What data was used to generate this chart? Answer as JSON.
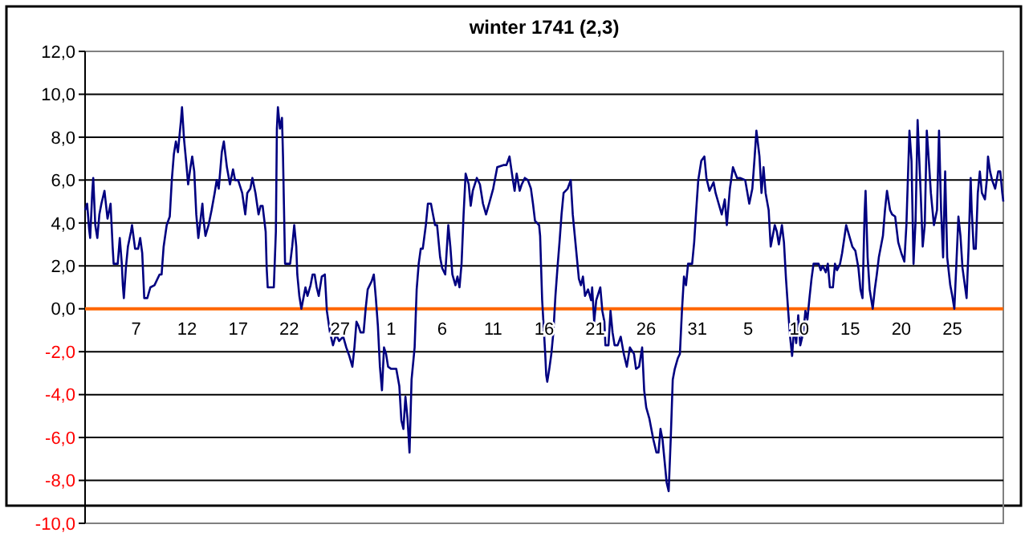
{
  "chart_data": {
    "type": "line",
    "title": "winter 1741 (2,3)",
    "x": [
      "1740-12-02T00:00",
      "1740-12-02T04:48",
      "1740-12-02T09:36",
      "1740-12-02T12:00",
      "1740-12-02T16:48",
      "1740-12-02T19:12",
      "1740-12-03T00:00",
      "1740-12-03T04:48",
      "1740-12-03T09:36",
      "1740-12-03T14:24",
      "1740-12-03T21:36",
      "1740-12-04T04:48",
      "1740-12-04T12:00",
      "1740-12-04T16:48",
      "1740-12-04T19:12",
      "1740-12-05T04:48",
      "1740-12-05T09:36",
      "1740-12-05T14:24",
      "1740-12-05T16:48",
      "1740-12-05T19:12",
      "1740-12-06T00:00",
      "1740-12-06T04:48",
      "1740-12-06T12:00",
      "1740-12-06T14:24",
      "1740-12-06T21:36",
      "1740-12-07T04:48",
      "1740-12-07T09:36",
      "1740-12-07T14:24",
      "1740-12-07T19:12",
      "1740-12-08T02:24",
      "1740-12-08T09:36",
      "1740-12-08T19:12",
      "1740-12-09T07:12",
      "1740-12-09T12:00",
      "1740-12-09T16:48",
      "1740-12-10T00:00",
      "1740-12-10T07:12",
      "1740-12-10T12:00",
      "1740-12-10T16:48",
      "1740-12-10T21:36",
      "1740-12-11T02:24",
      "1740-12-11T09:36",
      "1740-12-11T12:00",
      "1740-12-11T16:48",
      "1740-12-11T21:36",
      "1740-12-12T02:24",
      "1740-12-12T07:12",
      "1740-12-12T12:00",
      "1740-12-12T16:48",
      "1740-12-12T21:36",
      "1740-12-13T02:24",
      "1740-12-13T12:00",
      "1740-12-13T14:24",
      "1740-12-13T19:12",
      "1740-12-14T02:24",
      "1740-12-14T09:36",
      "1740-12-14T16:48",
      "1740-12-14T21:36",
      "1740-12-15T02:24",
      "1740-12-15T09:36",
      "1740-12-15T14:24",
      "1740-12-15T21:36",
      "1740-12-16T04:48",
      "1740-12-16T12:00",
      "1740-12-16T16:48",
      "1740-12-17T00:00",
      "1740-12-17T09:36",
      "1740-12-17T16:48",
      "1740-12-17T21:36",
      "1740-12-18T04:48",
      "1740-12-18T09:36",
      "1740-12-18T16:48",
      "1740-12-19T00:00",
      "1740-12-19T04:48",
      "1740-12-19T09:36",
      "1740-12-19T16:48",
      "1740-12-19T19:12",
      "1740-12-19T21:36",
      "1740-12-20T12:00",
      "1740-12-20T16:48",
      "1740-12-20T19:12",
      "1740-12-20T21:36",
      "1740-12-21T02:24",
      "1740-12-21T07:12",
      "1740-12-21T09:36",
      "1740-12-21T14:24",
      "1740-12-22T02:24",
      "1740-12-22T07:12",
      "1740-12-22T12:00",
      "1740-12-22T16:48",
      "1740-12-22T19:12",
      "1740-12-23T00:00",
      "1740-12-23T04:48",
      "1740-12-23T09:36",
      "1740-12-23T14:24",
      "1740-12-23T19:12",
      "1740-12-24T02:24",
      "1740-12-24T07:12",
      "1740-12-24T12:00",
      "1740-12-24T16:48",
      "1740-12-24T21:36",
      "1740-12-25T04:48",
      "1740-12-25T12:00",
      "1740-12-25T16:48",
      "1740-12-26T00:00",
      "1740-12-26T07:12",
      "1740-12-26T14:24",
      "1740-12-26T21:36",
      "1740-12-27T07:12",
      "1740-12-27T14:24",
      "1740-12-27T21:36",
      "1740-12-28T04:48",
      "1740-12-28T09:36",
      "1740-12-28T14:24",
      "1740-12-28T19:12",
      "1740-12-29T00:00",
      "1740-12-29T07:12",
      "1740-12-29T12:00",
      "1740-12-29T16:48",
      "1740-12-30T02:24",
      "1740-12-30T07:12",
      "1740-12-30T12:00",
      "1740-12-30T16:48",
      "1740-12-30T21:36",
      "1740-12-31T02:24",
      "1740-12-31T07:12",
      "1740-12-31T12:00",
      "1740-12-31T16:48",
      "1741-01-01T00:00",
      "1741-01-01T12:00",
      "1741-01-01T19:12",
      "1741-01-02T00:00",
      "1741-01-02T04:48",
      "1741-01-02T09:36",
      "1741-01-02T14:24",
      "1741-01-02T19:12",
      "1741-01-03T00:00",
      "1741-01-03T07:12",
      "1741-01-03T12:00",
      "1741-01-03T16:48",
      "1741-01-03T21:36",
      "1741-01-04T02:24",
      "1741-01-04T09:36",
      "1741-01-04T14:24",
      "1741-01-04T21:36",
      "1741-01-05T02:24",
      "1741-01-05T07:12",
      "1741-01-05T12:00",
      "1741-01-05T19:12",
      "1741-01-06T00:00",
      "1741-01-06T07:12",
      "1741-01-06T14:24",
      "1741-01-06T19:12",
      "1741-01-07T00:00",
      "1741-01-07T07:12",
      "1741-01-07T12:00",
      "1741-01-07T16:48",
      "1741-01-07T21:36",
      "1741-01-08T02:24",
      "1741-01-08T07:12",
      "1741-01-08T14:24",
      "1741-01-08T19:12",
      "1741-01-09T00:00",
      "1741-01-09T09:36",
      "1741-01-09T16:48",
      "1741-01-10T00:00",
      "1741-01-10T07:12",
      "1741-01-10T14:24",
      "1741-01-11T00:00",
      "1741-01-11T09:36",
      "1741-01-12T00:00",
      "1741-01-12T07:12",
      "1741-01-12T14:24",
      "1741-01-12T21:36",
      "1741-01-13T02:24",
      "1741-01-13T07:12",
      "1741-01-13T14:24",
      "1741-01-13T19:12",
      "1741-01-14T02:24",
      "1741-01-14T09:36",
      "1741-01-14T16:48",
      "1741-01-14T21:36",
      "1741-01-15T02:24",
      "1741-01-15T12:00",
      "1741-01-15T14:24",
      "1741-01-15T19:12",
      "1741-01-16T02:24",
      "1741-01-16T04:48",
      "1741-01-16T07:12",
      "1741-01-16T12:00",
      "1741-01-16T16:48",
      "1741-01-16T21:36",
      "1741-01-17T02:24",
      "1741-01-17T07:12",
      "1741-01-17T12:00",
      "1741-01-17T16:48",
      "1741-01-17T21:36",
      "1741-01-18T07:12",
      "1741-01-18T14:24",
      "1741-01-18T19:12",
      "1741-01-19T00:00",
      "1741-01-19T04:48",
      "1741-01-19T09:36",
      "1741-01-19T14:24",
      "1741-01-19T19:12",
      "1741-01-20T00:00",
      "1741-01-20T07:12",
      "1741-01-20T14:24",
      "1741-01-20T16:48",
      "1741-01-20T21:36",
      "1741-01-21T02:24",
      "1741-01-21T12:00",
      "1741-01-21T16:48",
      "1741-01-21T21:36",
      "1741-01-22T00:00",
      "1741-01-22T07:12",
      "1741-01-22T12:00",
      "1741-01-22T16:48",
      "1741-01-22T21:36",
      "1741-01-23T04:48",
      "1741-01-23T12:00",
      "1741-01-23T19:12",
      "1741-01-24T02:24",
      "1741-01-24T09:36",
      "1741-01-24T19:12",
      "1741-01-25T00:00",
      "1741-01-25T07:12",
      "1741-01-25T14:24",
      "1741-01-25T19:12",
      "1741-01-26T00:00",
      "1741-01-26T07:12",
      "1741-01-26T16:48",
      "1741-01-27T00:00",
      "1741-01-27T04:48",
      "1741-01-27T09:36",
      "1741-01-27T14:24",
      "1741-01-27T19:12",
      "1741-01-28T00:00",
      "1741-01-28T04:48",
      "1741-01-28T09:36",
      "1741-01-28T14:24",
      "1741-01-28T19:12",
      "1741-01-29T02:24",
      "1741-01-29T07:12",
      "1741-01-29T12:00",
      "1741-01-29T16:48",
      "1741-01-29T21:36",
      "1741-01-30T02:24",
      "1741-01-30T12:00",
      "1741-01-30T16:48",
      "1741-01-30T21:36",
      "1741-01-31T02:24",
      "1741-01-31T09:36",
      "1741-01-31T16:48",
      "1741-01-31T21:36",
      "1741-02-01T04:48",
      "1741-02-01T14:24",
      "1741-02-01T19:12",
      "1741-02-02T02:24",
      "1741-02-02T09:36",
      "1741-02-02T16:48",
      "1741-02-02T21:36",
      "1741-02-03T04:48",
      "1741-02-03T12:00",
      "1741-02-03T21:36",
      "1741-02-04T04:48",
      "1741-02-04T16:48",
      "1741-02-05T02:24",
      "1741-02-05T09:36",
      "1741-02-05T14:24",
      "1741-02-05T19:12",
      "1741-02-06T02:24",
      "1741-02-06T07:12",
      "1741-02-06T12:00",
      "1741-02-06T16:48",
      "1741-02-07T00:00",
      "1741-02-07T04:48",
      "1741-02-07T09:36",
      "1741-02-07T14:24",
      "1741-02-07T19:12",
      "1741-02-08T00:00",
      "1741-02-08T07:12",
      "1741-02-08T12:00",
      "1741-02-08T16:48",
      "1741-02-08T21:36",
      "1741-02-09T02:24",
      "1741-02-09T07:12",
      "1741-02-09T12:00",
      "1741-02-09T16:48",
      "1741-02-09T21:36",
      "1741-02-10T02:24",
      "1741-02-10T09:36",
      "1741-02-10T14:24",
      "1741-02-10T19:12",
      "1741-02-11T00:00",
      "1741-02-11T04:48",
      "1741-02-11T09:36",
      "1741-02-11T21:36",
      "1741-02-12T02:24",
      "1741-02-12T07:12",
      "1741-02-12T14:24",
      "1741-02-12T19:12",
      "1741-02-13T00:00",
      "1741-02-13T07:12",
      "1741-02-13T12:00",
      "1741-02-13T16:48",
      "1741-02-14T00:00",
      "1741-02-14T04:48",
      "1741-02-14T14:24",
      "1741-02-14T21:36",
      "1741-02-15T04:48",
      "1741-02-15T12:00",
      "1741-02-15T19:12",
      "1741-02-16T00:00",
      "1741-02-16T04:48",
      "1741-02-16T09:36",
      "1741-02-16T12:00",
      "1741-02-16T16:48",
      "1741-02-16T21:36",
      "1741-02-17T04:48",
      "1741-02-17T09:36",
      "1741-02-17T14:24",
      "1741-02-17T19:12",
      "1741-02-18T04:48",
      "1741-02-18T09:36",
      "1741-02-18T14:24",
      "1741-02-18T21:36",
      "1741-02-19T02:24",
      "1741-02-19T09:36",
      "1741-02-19T16:48",
      "1741-02-20T00:00",
      "1741-02-20T07:12",
      "1741-02-20T12:00",
      "1741-02-20T19:12",
      "1741-02-21T00:00",
      "1741-02-21T04:48",
      "1741-02-21T09:36",
      "1741-02-21T14:24",
      "1741-02-21T21:36",
      "1741-02-22T02:24",
      "1741-02-22T07:12",
      "1741-02-22T12:00",
      "1741-02-22T16:48",
      "1741-02-22T21:36",
      "1741-02-23T04:48",
      "1741-02-23T12:00",
      "1741-02-23T16:48",
      "1741-02-23T21:36",
      "1741-02-24T02:24",
      "1741-02-24T07:12",
      "1741-02-24T12:00",
      "1741-02-24T19:12",
      "1741-02-25T00:00",
      "1741-02-25T04:48",
      "1741-02-25T09:36",
      "1741-02-25T14:24",
      "1741-02-25T19:12",
      "1741-02-26T00:00",
      "1741-02-26T09:36",
      "1741-02-26T14:24",
      "1741-02-26T19:12",
      "1741-02-26T21:36",
      "1741-02-27T02:24",
      "1741-02-27T07:12",
      "1741-02-27T12:00",
      "1741-02-27T16:48",
      "1741-02-27T21:36",
      "1741-02-28T04:48",
      "1741-02-28T09:36",
      "1741-02-28T12:00",
      "1741-02-28T16:48",
      "1741-02-28T21:36",
      "1741-03-01T04:48",
      "1741-03-01T12:00",
      "1741-03-01T16:48",
      "1741-03-01T21:36",
      "1741-03-02T00:00"
    ],
    "series": [
      {
        "color": "#000080",
        "values": [
          4.6,
          4.9,
          3.7,
          3.3,
          5.4,
          6.1,
          3.9,
          3.3,
          4.4,
          4.9,
          5.5,
          4.2,
          4.9,
          2.9,
          2.1,
          2.1,
          3.3,
          2.1,
          1.1,
          0.5,
          1.9,
          2.9,
          3.6,
          3.9,
          2.8,
          2.8,
          3.3,
          2.6,
          0.5,
          0.5,
          1.0,
          1.1,
          1.6,
          1.6,
          2.9,
          3.9,
          4.3,
          6.0,
          7.2,
          7.8,
          7.3,
          8.8,
          9.4,
          7.9,
          6.9,
          5.8,
          6.5,
          7.1,
          6.4,
          4.4,
          3.3,
          4.9,
          4.2,
          3.4,
          3.9,
          4.6,
          5.4,
          6.0,
          5.6,
          7.3,
          7.8,
          6.6,
          5.8,
          6.5,
          6.0,
          6.0,
          5.4,
          4.4,
          5.4,
          5.6,
          6.1,
          5.4,
          4.4,
          4.8,
          4.8,
          3.6,
          1.9,
          1.0,
          1.0,
          3.6,
          8.4,
          9.4,
          8.4,
          8.9,
          7.1,
          2.1,
          2.1,
          2.9,
          3.9,
          2.9,
          1.6,
          0.6,
          0.0,
          0.5,
          1.0,
          0.6,
          1.1,
          1.6,
          1.6,
          1.0,
          0.6,
          1.5,
          1.6,
          -0.1,
          -1.1,
          -1.7,
          -1.2,
          -1.5,
          -1.3,
          -1.8,
          -2.2,
          -2.7,
          -1.8,
          -0.6,
          -0.8,
          -1.1,
          -1.1,
          0.0,
          0.9,
          1.3,
          1.6,
          0.5,
          -0.8,
          -2.7,
          -3.8,
          -1.8,
          -2.1,
          -2.7,
          -2.8,
          -2.8,
          -3.6,
          -5.2,
          -5.6,
          -4.1,
          -5.1,
          -6.7,
          -3.3,
          -1.8,
          0.9,
          2.1,
          2.8,
          2.8,
          3.9,
          4.9,
          4.9,
          4.4,
          3.9,
          3.9,
          2.4,
          1.9,
          1.6,
          3.9,
          2.9,
          1.6,
          1.1,
          1.5,
          1.0,
          2.1,
          4.4,
          6.3,
          5.8,
          4.8,
          5.5,
          6.1,
          5.8,
          4.9,
          4.4,
          4.9,
          5.6,
          6.6,
          6.7,
          6.7,
          7.1,
          6.1,
          5.5,
          6.3,
          5.5,
          5.8,
          6.1,
          6.0,
          5.6,
          4.9,
          4.1,
          3.9,
          3.4,
          0.4,
          -2.1,
          -3.1,
          -3.4,
          -2.8,
          -2.1,
          -1.1,
          0.6,
          1.9,
          3.1,
          4.4,
          5.4,
          5.6,
          6.0,
          4.4,
          3.4,
          2.4,
          1.4,
          1.1,
          1.5,
          0.6,
          0.9,
          0.4,
          1.0,
          -0.6,
          0.4,
          1.0,
          -0.1,
          -0.6,
          -1.7,
          -1.7,
          -0.1,
          -1.1,
          -1.7,
          -1.7,
          -1.3,
          -2.1,
          -2.7,
          -1.8,
          -2.1,
          -2.8,
          -2.7,
          -1.8,
          -3.8,
          -4.6,
          -5.1,
          -6.1,
          -6.7,
          -6.7,
          -5.6,
          -6.1,
          -7.1,
          -8.1,
          -8.5,
          -6.1,
          -3.3,
          -2.8,
          -2.3,
          -2.1,
          -0.1,
          1.5,
          1.1,
          2.1,
          2.1,
          3.1,
          4.6,
          6.0,
          6.9,
          7.1,
          6.1,
          5.5,
          5.9,
          5.4,
          4.9,
          4.4,
          5.1,
          3.9,
          5.6,
          6.6,
          6.1,
          6.1,
          6.0,
          4.9,
          5.6,
          6.9,
          8.3,
          7.1,
          5.4,
          6.6,
          5.4,
          4.6,
          2.9,
          3.4,
          3.9,
          3.6,
          3.0,
          3.9,
          3.1,
          1.4,
          0.0,
          -1.3,
          -2.2,
          -0.8,
          -1.6,
          -0.3,
          -1.7,
          -1.1,
          -0.1,
          -0.5,
          0.5,
          1.4,
          2.1,
          2.1,
          1.8,
          2.0,
          1.7,
          2.1,
          1.0,
          1.0,
          2.1,
          1.8,
          2.1,
          2.6,
          3.9,
          3.4,
          2.9,
          2.7,
          1.9,
          0.9,
          0.5,
          4.4,
          5.5,
          2.4,
          0.9,
          0.0,
          0.9,
          1.6,
          2.4,
          3.4,
          4.6,
          5.5,
          4.6,
          4.4,
          4.3,
          3.1,
          2.6,
          2.2,
          3.9,
          8.3,
          6.9,
          2.1,
          4.1,
          8.8,
          5.4,
          2.9,
          3.9,
          8.3,
          6.9,
          5.4,
          3.9,
          4.6,
          8.3,
          4.6,
          2.4,
          6.4,
          2.4,
          1.1,
          0.6,
          0.0,
          2.1,
          4.3,
          3.4,
          1.9,
          0.5,
          2.9,
          6.1,
          4.6,
          2.8,
          2.8,
          5.4,
          6.4,
          5.4,
          5.1,
          6.1,
          7.1,
          6.4,
          6.0,
          5.6,
          6.4,
          6.4,
          5.4,
          5.0
        ]
      }
    ],
    "xlim": [
      "1740-12-02",
      "1741-03-02"
    ],
    "xticks": [
      {
        "value": "1740-12-07",
        "label": "7"
      },
      {
        "value": "1740-12-12",
        "label": "12"
      },
      {
        "value": "1740-12-17",
        "label": "17"
      },
      {
        "value": "1740-12-22",
        "label": "22"
      },
      {
        "value": "1740-12-27",
        "label": "27"
      },
      {
        "value": "1741-01-01",
        "label": "1"
      },
      {
        "value": "1741-01-06",
        "label": "6"
      },
      {
        "value": "1741-01-11",
        "label": "11"
      },
      {
        "value": "1741-01-16",
        "label": "16"
      },
      {
        "value": "1741-01-21",
        "label": "21"
      },
      {
        "value": "1741-01-26",
        "label": "26"
      },
      {
        "value": "1741-01-31",
        "label": "31"
      },
      {
        "value": "1741-02-05",
        "label": "5"
      },
      {
        "value": "1741-02-10",
        "label": "10"
      },
      {
        "value": "1741-02-15",
        "label": "15"
      },
      {
        "value": "1741-02-20",
        "label": "20"
      },
      {
        "value": "1741-02-25",
        "label": "25"
      }
    ],
    "ylim": [
      -10,
      12
    ],
    "yticks": [
      {
        "value": -10,
        "label": "-10,0"
      },
      {
        "value": -8,
        "label": "-8,0"
      },
      {
        "value": -6,
        "label": "-6,0"
      },
      {
        "value": -4,
        "label": "-4,0"
      },
      {
        "value": -2,
        "label": "-2,0"
      },
      {
        "value": 0,
        "label": "0,0"
      },
      {
        "value": 2,
        "label": "2,0"
      },
      {
        "value": 4,
        "label": "4,0"
      },
      {
        "value": 6,
        "label": "6,0"
      },
      {
        "value": 8,
        "label": "8,0"
      },
      {
        "value": 10,
        "label": "10,0"
      },
      {
        "value": 12,
        "label": "12,0"
      }
    ],
    "grid": "y"
  }
}
